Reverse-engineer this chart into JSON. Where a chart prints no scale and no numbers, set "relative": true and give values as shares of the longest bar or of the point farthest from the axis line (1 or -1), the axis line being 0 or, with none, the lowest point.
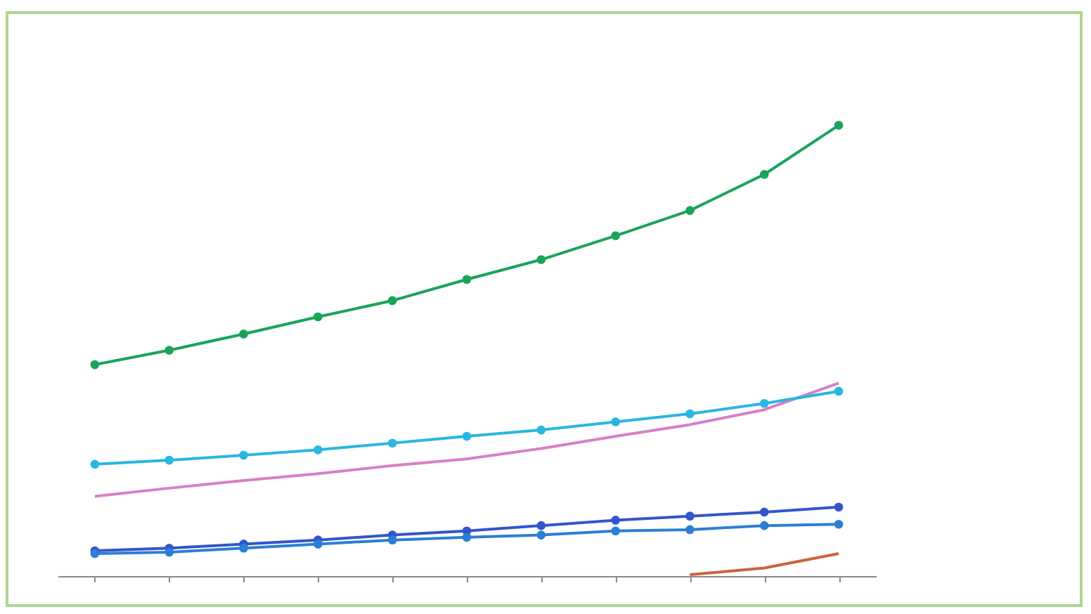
{
  "chart_data": {
    "type": "line",
    "relative": true,
    "categories": [
      null,
      null,
      null,
      null,
      null,
      null,
      null,
      null,
      null,
      null,
      null
    ],
    "marker": "circle",
    "series": [
      {
        "color": "#1aa35a",
        "values": [
          0.469,
          0.501,
          0.537,
          0.575,
          0.611,
          0.658,
          0.702,
          0.755,
          0.811,
          0.891,
          1
        ]
      },
      {
        "color": "#d77fc8",
        "marker": "none",
        "values": [
          0.177,
          0.195,
          0.212,
          0.227,
          0.245,
          0.26,
          0.283,
          0.31,
          0.336,
          0.369,
          0.428
        ]
      },
      {
        "color": "#29b6e0",
        "values": [
          0.248,
          0.257,
          0.268,
          0.28,
          0.295,
          0.31,
          0.324,
          0.342,
          0.36,
          0.383,
          0.41
        ]
      },
      {
        "color": "#3355cc",
        "values": [
          0.056,
          0.062,
          0.071,
          0.08,
          0.091,
          0.1,
          0.112,
          0.124,
          0.133,
          0.142,
          0.153
        ]
      },
      {
        "color": "#c8653a",
        "marker": "none",
        "values": [
          null,
          null,
          null,
          null,
          null,
          null,
          null,
          null,
          0.003,
          0.018,
          0.05
        ]
      },
      {
        "color": "#2a7fd4",
        "values": [
          0.05,
          0.053,
          0.062,
          0.071,
          0.08,
          0.086,
          0.091,
          0.1,
          0.103,
          0.112,
          0.115
        ]
      }
    ]
  }
}
